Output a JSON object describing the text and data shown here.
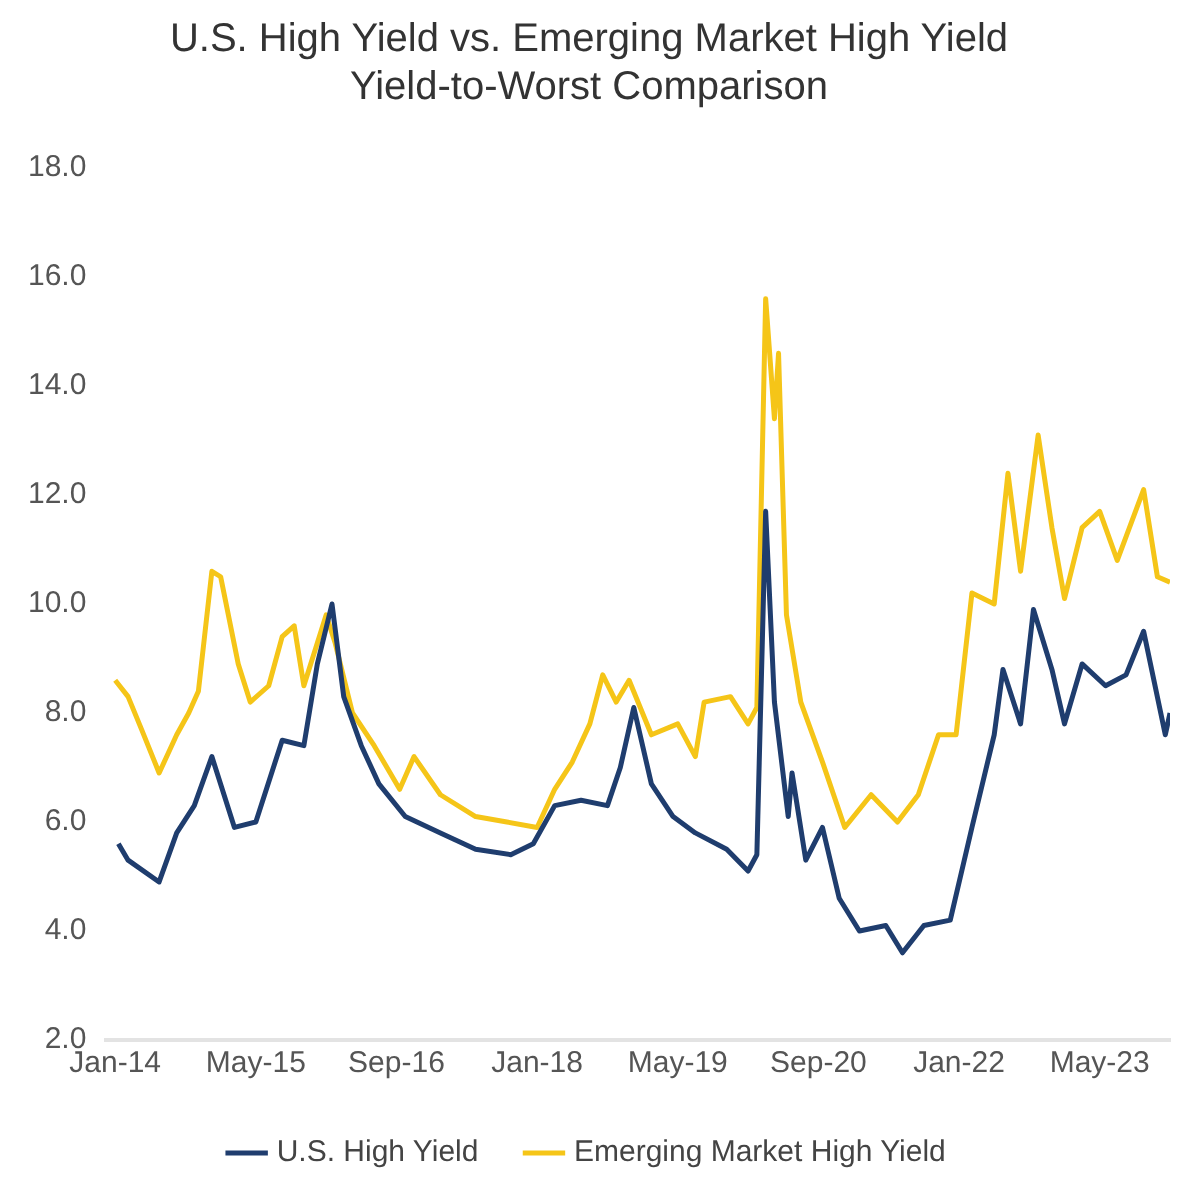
{
  "chart_data": {
    "type": "line",
    "title": "U.S. High Yield vs. Emerging Market High Yield\nYield-to-Worst Comparison",
    "xlim": [
      "2013-12",
      "2024-01"
    ],
    "xticks": [
      {
        "value": "2014-01",
        "label": "Jan-14"
      },
      {
        "value": "2015-05",
        "label": "May-15"
      },
      {
        "value": "2016-09",
        "label": "Sep-16"
      },
      {
        "value": "2018-01",
        "label": "Jan-18"
      },
      {
        "value": "2019-05",
        "label": "May-19"
      },
      {
        "value": "2020-09",
        "label": "Sep-20"
      },
      {
        "value": "2022-01",
        "label": "Jan-22"
      },
      {
        "value": "2023-05",
        "label": "May-23"
      }
    ],
    "ylim": [
      2,
      18
    ],
    "yticks": [
      {
        "value": 2,
        "label": "2.0"
      },
      {
        "value": 4,
        "label": "4.0"
      },
      {
        "value": 6,
        "label": "6.0"
      },
      {
        "value": 8,
        "label": "8.0"
      },
      {
        "value": 10,
        "label": "10.0"
      },
      {
        "value": 12,
        "label": "12.0"
      },
      {
        "value": 14,
        "label": "14.0"
      },
      {
        "value": 16,
        "label": "16.0"
      },
      {
        "value": 18,
        "label": "18.0"
      }
    ],
    "grid": false,
    "legend": "bottom",
    "marker": "none",
    "line_style": "solid",
    "series": [
      {
        "name": "U.S. High Yield",
        "color": "#1f3d6e",
        "x": [
          "2014-01-12",
          "2014-02-15",
          "2014-06",
          "2014-08",
          "2014-10",
          "2014-12",
          "2015-02-18",
          "2015-05",
          "2015-08",
          "2015-10-15",
          "2015-12",
          "2016-01-21",
          "2016-03",
          "2016-05",
          "2016-07",
          "2016-10",
          "2017-02",
          "2017-06",
          "2017-10",
          "2017-12-18",
          "2018-03",
          "2018-06",
          "2018-09",
          "2018-10-15",
          "2018-12",
          "2019-02",
          "2019-04-15",
          "2019-07",
          "2019-10-18",
          "2020-01",
          "2020-02",
          "2020-03",
          "2020-04",
          "2020-05-18",
          "2020-06",
          "2020-07-18",
          "2020-09-15",
          "2020-11-12",
          "2021-01-21",
          "2021-04-21",
          "2021-06-18",
          "2021-09",
          "2021-12",
          "2022-02-15",
          "2022-05",
          "2022-06",
          "2022-08",
          "2022-09-15",
          "2022-11-18",
          "2023-01",
          "2023-03",
          "2023-05-21",
          "2023-08",
          "2023-10",
          "2023-12-15",
          "2024-01"
        ],
        "values": [
          5.6,
          5.3,
          4.9,
          5.8,
          6.3,
          7.2,
          5.9,
          6.0,
          7.5,
          7.4,
          8.9,
          10.0,
          8.3,
          7.4,
          6.7,
          6.1,
          5.8,
          5.5,
          5.4,
          5.6,
          6.3,
          6.4,
          6.3,
          7.0,
          8.1,
          6.7,
          6.1,
          5.8,
          5.5,
          5.1,
          5.4,
          11.7,
          8.2,
          6.1,
          6.9,
          5.3,
          5.9,
          4.6,
          4.0,
          4.1,
          3.6,
          4.1,
          4.2,
          5.9,
          7.6,
          8.8,
          7.8,
          9.9,
          8.8,
          7.8,
          8.9,
          8.5,
          8.7,
          9.5,
          7.6,
          8.0
        ]
      },
      {
        "name": "Emerging Market High Yield",
        "color": "#f5c518",
        "x": [
          "2014-01",
          "2014-02-15",
          "2014-04",
          "2014-06",
          "2014-08",
          "2014-09-12",
          "2014-10-15",
          "2014-12",
          "2015-01",
          "2015-03",
          "2015-04-12",
          "2015-06-15",
          "2015-08",
          "2015-09-12",
          "2015-10-15",
          "2016-01",
          "2016-02",
          "2016-04",
          "2016-06-15",
          "2016-09-12",
          "2016-11",
          "2017-02",
          "2017-06",
          "2017-09-18",
          "2018-01",
          "2018-03",
          "2018-05",
          "2018-07",
          "2018-08-15",
          "2018-10",
          "2018-11-15",
          "2019-02",
          "2019-05",
          "2019-07",
          "2019-08",
          "2019-11",
          "2020-01",
          "2020-02",
          "2020-03",
          "2020-04",
          "2020-04-15",
          "2020-05-12",
          "2020-07",
          "2020-09-15",
          "2020-12",
          "2021-03",
          "2021-06",
          "2021-08-12",
          "2021-10-21",
          "2021-12-21",
          "2022-02-15",
          "2022-05",
          "2022-06-18",
          "2022-08",
          "2022-10",
          "2022-11-18",
          "2023-01",
          "2023-03",
          "2023-05",
          "2023-07",
          "2023-10",
          "2023-11-18",
          "2024-01"
        ],
        "values": [
          8.6,
          8.3,
          7.7,
          6.9,
          7.6,
          8.0,
          8.4,
          10.6,
          10.5,
          8.9,
          8.2,
          8.5,
          9.4,
          9.6,
          8.5,
          9.8,
          9.3,
          8.0,
          7.4,
          6.6,
          7.2,
          6.5,
          6.1,
          6.0,
          5.9,
          6.6,
          7.1,
          7.8,
          8.7,
          8.2,
          8.6,
          7.6,
          7.8,
          7.2,
          8.2,
          8.3,
          7.8,
          8.1,
          15.6,
          13.4,
          14.6,
          9.8,
          8.2,
          7.1,
          5.9,
          6.5,
          6.0,
          6.5,
          7.6,
          7.6,
          10.2,
          10.0,
          12.4,
          10.6,
          13.1,
          11.4,
          10.1,
          11.4,
          11.7,
          10.8,
          12.1,
          10.5,
          10.4
        ]
      }
    ]
  }
}
